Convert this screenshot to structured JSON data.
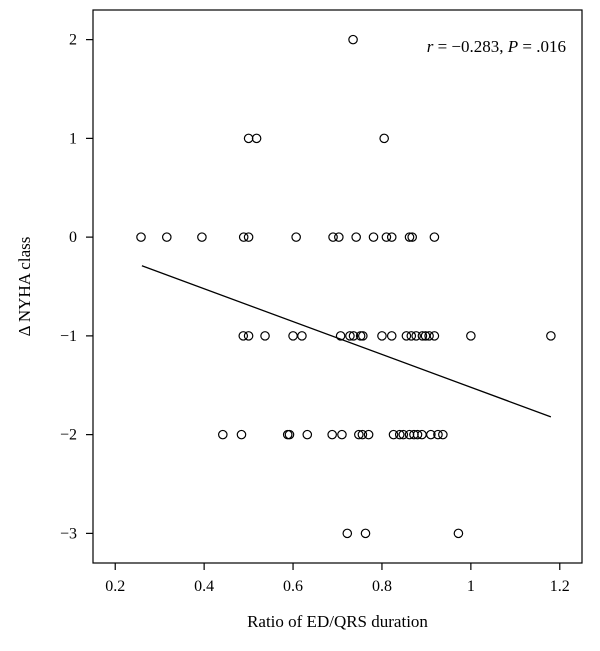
{
  "chart_data": {
    "type": "scatter",
    "xlabel": "Ratio of ED/QRS duration",
    "ylabel": "Δ NYHA class",
    "annotation": {
      "r_symbol": "r",
      "r_value": " = −0.283, ",
      "p_symbol": "P",
      "p_value": " = .016"
    },
    "xlim": [
      0.15,
      1.25
    ],
    "ylim": [
      -3.3,
      2.3
    ],
    "x_ticks": [
      0.2,
      0.4,
      0.6,
      0.8,
      1.0,
      1.2
    ],
    "x_tick_labels": [
      "0.2",
      "0.4",
      "0.6",
      "0.8",
      "1",
      "1.2"
    ],
    "y_ticks": [
      2,
      1,
      0,
      -1,
      -2,
      -3
    ],
    "y_tick_labels": [
      "2",
      "1",
      "0",
      "−1",
      "−2",
      "−3"
    ],
    "fit_line": {
      "x": [
        0.26,
        1.18
      ],
      "y": [
        -0.29,
        -1.82
      ]
    },
    "points": [
      {
        "x": 0.735,
        "y": 2
      },
      {
        "x": 0.5,
        "y": 1
      },
      {
        "x": 0.518,
        "y": 1
      },
      {
        "x": 0.805,
        "y": 1
      },
      {
        "x": 0.258,
        "y": 0
      },
      {
        "x": 0.316,
        "y": 0
      },
      {
        "x": 0.395,
        "y": 0
      },
      {
        "x": 0.489,
        "y": 0
      },
      {
        "x": 0.5,
        "y": 0
      },
      {
        "x": 0.607,
        "y": 0
      },
      {
        "x": 0.69,
        "y": 0
      },
      {
        "x": 0.703,
        "y": 0
      },
      {
        "x": 0.742,
        "y": 0
      },
      {
        "x": 0.781,
        "y": 0
      },
      {
        "x": 0.81,
        "y": 0
      },
      {
        "x": 0.822,
        "y": 0
      },
      {
        "x": 0.862,
        "y": 0
      },
      {
        "x": 0.868,
        "y": 0
      },
      {
        "x": 0.918,
        "y": 0
      },
      {
        "x": 0.488,
        "y": -1
      },
      {
        "x": 0.5,
        "y": -1
      },
      {
        "x": 0.537,
        "y": -1
      },
      {
        "x": 0.6,
        "y": -1
      },
      {
        "x": 0.62,
        "y": -1
      },
      {
        "x": 0.707,
        "y": -1
      },
      {
        "x": 0.728,
        "y": -1
      },
      {
        "x": 0.736,
        "y": -1
      },
      {
        "x": 0.752,
        "y": -1
      },
      {
        "x": 0.757,
        "y": -1
      },
      {
        "x": 0.8,
        "y": -1
      },
      {
        "x": 0.822,
        "y": -1
      },
      {
        "x": 0.855,
        "y": -1
      },
      {
        "x": 0.866,
        "y": -1
      },
      {
        "x": 0.877,
        "y": -1
      },
      {
        "x": 0.891,
        "y": -1
      },
      {
        "x": 0.898,
        "y": -1
      },
      {
        "x": 0.906,
        "y": -1
      },
      {
        "x": 0.918,
        "y": -1
      },
      {
        "x": 1.0,
        "y": -1
      },
      {
        "x": 1.18,
        "y": -1
      },
      {
        "x": 0.442,
        "y": -2
      },
      {
        "x": 0.484,
        "y": -2
      },
      {
        "x": 0.588,
        "y": -2
      },
      {
        "x": 0.592,
        "y": -2
      },
      {
        "x": 0.632,
        "y": -2
      },
      {
        "x": 0.688,
        "y": -2
      },
      {
        "x": 0.71,
        "y": -2
      },
      {
        "x": 0.748,
        "y": -2
      },
      {
        "x": 0.756,
        "y": -2
      },
      {
        "x": 0.77,
        "y": -2
      },
      {
        "x": 0.826,
        "y": -2
      },
      {
        "x": 0.84,
        "y": -2
      },
      {
        "x": 0.848,
        "y": -2
      },
      {
        "x": 0.862,
        "y": -2
      },
      {
        "x": 0.872,
        "y": -2
      },
      {
        "x": 0.88,
        "y": -2
      },
      {
        "x": 0.89,
        "y": -2
      },
      {
        "x": 0.91,
        "y": -2
      },
      {
        "x": 0.926,
        "y": -2
      },
      {
        "x": 0.937,
        "y": -2
      },
      {
        "x": 0.722,
        "y": -3
      },
      {
        "x": 0.763,
        "y": -3
      },
      {
        "x": 0.972,
        "y": -3
      }
    ]
  }
}
